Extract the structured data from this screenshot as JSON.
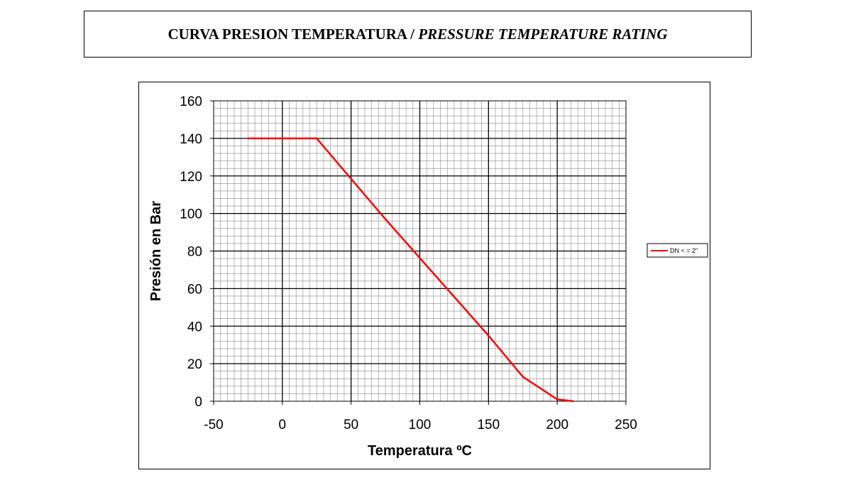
{
  "page": {
    "title_es": "CURVA PRESION TEMPERATURA /",
    "title_en": "PRESSURE TEMPERATURE RATING"
  },
  "chart_data": {
    "type": "line",
    "title": "",
    "xlabel": "Temperatura ºC",
    "ylabel": "Presión en Bar",
    "xlim": [
      -50,
      250
    ],
    "ylim": [
      0,
      160
    ],
    "x_major_step": 50,
    "y_major_step": 20,
    "x_minor_step": 5,
    "y_minor_step": 4,
    "x_ticks": [
      "-50",
      "0",
      "50",
      "100",
      "150",
      "200",
      "250"
    ],
    "y_ticks": [
      "0",
      "20",
      "40",
      "60",
      "80",
      "100",
      "120",
      "140",
      "160"
    ],
    "grid": true,
    "legend_position": "right",
    "series": [
      {
        "name": "DN < = 2\"",
        "color": "#ff0000",
        "x": [
          -25,
          25,
          75,
          150,
          175,
          200,
          212
        ],
        "y": [
          140,
          140,
          97,
          35,
          13,
          1,
          0
        ]
      }
    ]
  }
}
